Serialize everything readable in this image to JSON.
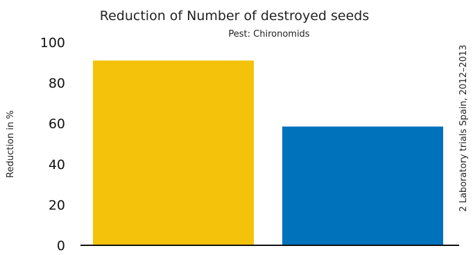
{
  "chart_data": {
    "type": "bar",
    "title": "Reduction of Number of destroyed  seeds",
    "subtitle": "Pest: Chironomids",
    "xlabel": "",
    "ylabel": "Reduction in %",
    "side_note": "2 Laboratory trials Spain, 2012–2013",
    "categories": [
      "",
      ""
    ],
    "values": [
      91,
      58.5
    ],
    "colors": [
      "#F5C20B",
      "#0072BC"
    ],
    "ylim": [
      0,
      100
    ],
    "yticks": [
      0,
      20,
      40,
      60,
      80,
      100
    ],
    "grid": false,
    "legend": "none"
  }
}
